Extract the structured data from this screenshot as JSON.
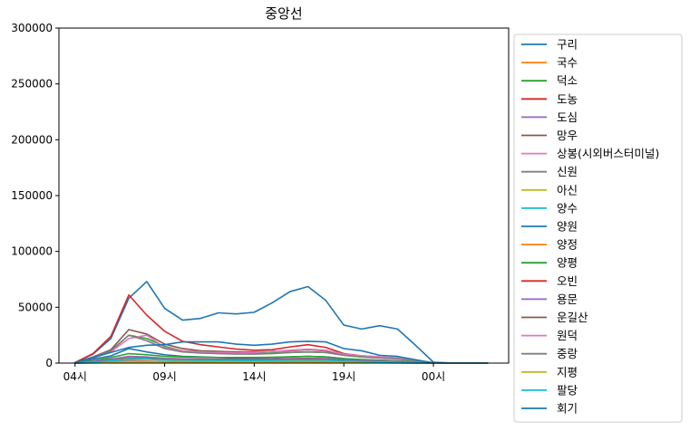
{
  "chart_data": {
    "type": "line",
    "title": "중앙선",
    "xlabel": "",
    "ylabel": "",
    "x": [
      4,
      5,
      6,
      7,
      8,
      9,
      10,
      11,
      12,
      13,
      14,
      15,
      16,
      17,
      18,
      19,
      20,
      21,
      22,
      23,
      24,
      25,
      26,
      27
    ],
    "xticks": [
      {
        "value": 4,
        "label": "04시"
      },
      {
        "value": 9,
        "label": "09시"
      },
      {
        "value": 14,
        "label": "14시"
      },
      {
        "value": 19,
        "label": "19시"
      },
      {
        "value": 24,
        "label": "00시"
      }
    ],
    "xlim": [
      3.1,
      28.2
    ],
    "ylim": [
      0,
      300000
    ],
    "yticks": [
      0,
      50000,
      100000,
      150000,
      200000,
      250000,
      300000
    ],
    "ytick_labels": [
      "0",
      "50000",
      "100000",
      "150000",
      "200000",
      "250000",
      "300000"
    ],
    "grid": false,
    "legend": "outside-right",
    "series": [
      {
        "name": "구리",
        "color": "#1f77b4",
        "values": [
          500,
          8000,
          22000,
          58000,
          73000,
          49000,
          38500,
          40000,
          45000,
          44000,
          45500,
          54000,
          64000,
          68500,
          56000,
          34000,
          30500,
          33500,
          30500,
          16000,
          800,
          200,
          100,
          100
        ]
      },
      {
        "name": "국수",
        "color": "#ff7f0e",
        "values": [
          50,
          300,
          1200,
          2200,
          1800,
          1100,
          900,
          900,
          900,
          850,
          850,
          900,
          1000,
          1100,
          1000,
          800,
          600,
          500,
          400,
          200,
          20,
          0,
          0,
          0
        ]
      },
      {
        "name": "덕소",
        "color": "#2ca02c",
        "values": [
          200,
          4000,
          11000,
          25000,
          22000,
          15000,
          11000,
          10000,
          9000,
          8500,
          8500,
          9000,
          9500,
          10000,
          9500,
          7000,
          5500,
          5000,
          4500,
          2000,
          100,
          0,
          0,
          0
        ]
      },
      {
        "name": "도농",
        "color": "#d62728",
        "values": [
          400,
          8500,
          24000,
          61000,
          43000,
          28500,
          19500,
          16500,
          14500,
          12500,
          11500,
          12000,
          14500,
          16500,
          14000,
          8500,
          6500,
          5500,
          4500,
          2500,
          200,
          0,
          0,
          0
        ]
      },
      {
        "name": "도심",
        "color": "#9467bd",
        "values": [
          50,
          800,
          2500,
          5000,
          4500,
          3000,
          2300,
          2200,
          2000,
          1900,
          1900,
          2000,
          2200,
          2500,
          2300,
          1600,
          1200,
          1000,
          800,
          400,
          30,
          0,
          0,
          0
        ]
      },
      {
        "name": "망우",
        "color": "#8c564b",
        "values": [
          300,
          5500,
          12000,
          30000,
          26000,
          17000,
          13000,
          11000,
          10500,
          10000,
          10000,
          10500,
          11000,
          12000,
          11000,
          7500,
          6000,
          5000,
          4500,
          2000,
          100,
          0,
          0,
          0
        ]
      },
      {
        "name": "상봉(시외버스터미널)",
        "color": "#e377c2",
        "values": [
          200,
          4500,
          10000,
          22000,
          25000,
          14000,
          11000,
          10000,
          9500,
          9000,
          9500,
          10500,
          11500,
          12500,
          11500,
          8000,
          6500,
          5500,
          4500,
          2500,
          150,
          0,
          0,
          0
        ]
      },
      {
        "name": "신원",
        "color": "#7f7f7f",
        "values": [
          20,
          200,
          600,
          1200,
          1000,
          700,
          600,
          550,
          550,
          500,
          500,
          550,
          600,
          650,
          600,
          450,
          350,
          300,
          250,
          100,
          10,
          0,
          0,
          0
        ]
      },
      {
        "name": "아신",
        "color": "#bcbd22",
        "values": [
          20,
          300,
          900,
          1600,
          1400,
          900,
          700,
          650,
          650,
          600,
          600,
          650,
          700,
          800,
          700,
          550,
          400,
          350,
          300,
          150,
          10,
          0,
          0,
          0
        ]
      },
      {
        "name": "양수",
        "color": "#17becf",
        "values": [
          50,
          600,
          1800,
          3200,
          3500,
          2500,
          2100,
          2000,
          1900,
          1800,
          1800,
          1900,
          2100,
          2300,
          2100,
          1500,
          1100,
          900,
          700,
          300,
          20,
          0,
          0,
          0
        ]
      },
      {
        "name": "양원",
        "color": "#1f77b4",
        "values": [
          200,
          3500,
          6500,
          13000,
          10000,
          7500,
          6000,
          5500,
          5000,
          4500,
          4500,
          5000,
          5500,
          6000,
          5500,
          4000,
          3000,
          2500,
          2000,
          1000,
          100,
          0,
          0,
          0
        ]
      },
      {
        "name": "양정",
        "color": "#ff7f0e",
        "values": [
          50,
          800,
          2500,
          5000,
          4000,
          2800,
          2200,
          2000,
          1900,
          1800,
          1800,
          1900,
          2100,
          2300,
          2100,
          1500,
          1100,
          900,
          700,
          300,
          30,
          0,
          0,
          0
        ]
      },
      {
        "name": "양평",
        "color": "#2ca02c",
        "values": [
          100,
          2000,
          5000,
          8500,
          7500,
          6000,
          5500,
          5200,
          5000,
          5000,
          5000,
          5200,
          5600,
          6000,
          5500,
          4000,
          3200,
          2600,
          2000,
          900,
          60,
          0,
          0,
          0
        ]
      },
      {
        "name": "오빈",
        "color": "#d62728",
        "values": [
          20,
          300,
          800,
          1500,
          1300,
          900,
          700,
          650,
          600,
          600,
          600,
          650,
          700,
          750,
          700,
          500,
          400,
          350,
          300,
          120,
          10,
          0,
          0,
          0
        ]
      },
      {
        "name": "용문",
        "color": "#9467bd",
        "values": [
          100,
          1500,
          3500,
          6000,
          5500,
          4200,
          3800,
          3600,
          3500,
          3400,
          3500,
          3700,
          4000,
          4300,
          4000,
          3000,
          2400,
          2000,
          1500,
          700,
          50,
          0,
          0,
          0
        ]
      },
      {
        "name": "운길산",
        "color": "#8c564b",
        "values": [
          50,
          700,
          2200,
          4200,
          4500,
          3500,
          3200,
          3100,
          3000,
          2900,
          2900,
          3000,
          3300,
          3500,
          3200,
          2300,
          1700,
          1300,
          1000,
          400,
          20,
          0,
          0,
          0
        ]
      },
      {
        "name": "원덕",
        "color": "#e377c2",
        "values": [
          20,
          250,
          700,
          1400,
          1200,
          800,
          650,
          600,
          600,
          550,
          550,
          600,
          650,
          700,
          650,
          500,
          380,
          320,
          250,
          100,
          10,
          0,
          0,
          0
        ]
      },
      {
        "name": "중랑",
        "color": "#7f7f7f",
        "values": [
          300,
          5000,
          11000,
          25000,
          20000,
          13000,
          10000,
          9000,
          8500,
          8000,
          8000,
          8500,
          9500,
          10000,
          9500,
          7000,
          5500,
          4500,
          3800,
          1800,
          100,
          0,
          0,
          0
        ]
      },
      {
        "name": "지평",
        "color": "#bcbd22",
        "values": [
          10,
          150,
          400,
          800,
          700,
          500,
          400,
          380,
          370,
          360,
          360,
          380,
          400,
          450,
          400,
          300,
          230,
          200,
          160,
          70,
          5,
          0,
          0,
          0
        ]
      },
      {
        "name": "팔당",
        "color": "#17becf",
        "values": [
          50,
          700,
          2000,
          3800,
          4000,
          3000,
          2700,
          2500,
          2400,
          2300,
          2300,
          2400,
          2600,
          2800,
          2600,
          1900,
          1400,
          1100,
          900,
          400,
          20,
          0,
          0,
          0
        ]
      },
      {
        "name": "회기",
        "color": "#1f77b4",
        "values": [
          400,
          5000,
          9500,
          14000,
          16000,
          16500,
          19000,
          19000,
          19000,
          17000,
          16000,
          17000,
          19000,
          19500,
          19000,
          13000,
          11000,
          7000,
          6000,
          3000,
          200,
          0,
          0,
          0
        ]
      }
    ]
  }
}
